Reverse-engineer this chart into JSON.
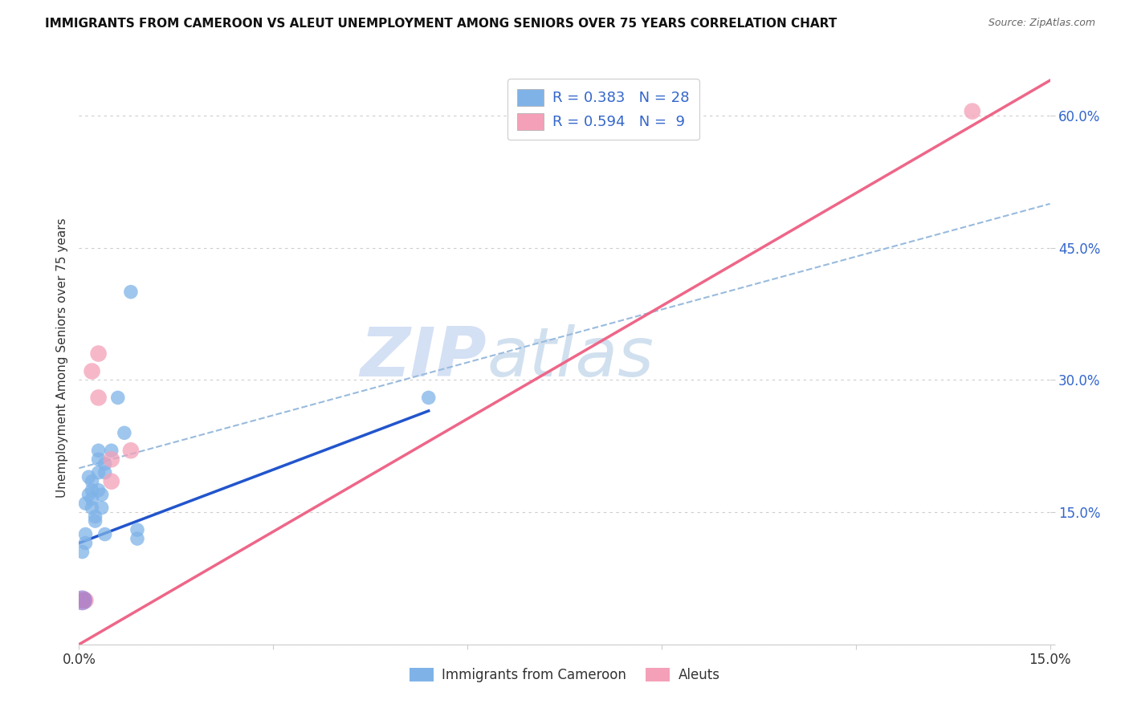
{
  "title": "IMMIGRANTS FROM CAMEROON VS ALEUT UNEMPLOYMENT AMONG SENIORS OVER 75 YEARS CORRELATION CHART",
  "source": "Source: ZipAtlas.com",
  "ylabel": "Unemployment Among Seniors over 75 years",
  "xlim": [
    0.0,
    0.15
  ],
  "ylim": [
    0.0,
    0.65
  ],
  "xticks": [
    0.0,
    0.03,
    0.06,
    0.09,
    0.12,
    0.15
  ],
  "yticks": [
    0.0,
    0.15,
    0.3,
    0.45,
    0.6
  ],
  "background_color": "#ffffff",
  "watermark_zip": "ZIP",
  "watermark_atlas": "atlas",
  "blue_color": "#7fb3e8",
  "pink_color": "#f4a0b8",
  "blue_line_color": "#2255cc",
  "pink_line_color": "#ee6688",
  "dashed_line_color": "#99bbdd",
  "blue_scatter": [
    [
      0.0005,
      0.105
    ],
    [
      0.001,
      0.125
    ],
    [
      0.001,
      0.115
    ],
    [
      0.001,
      0.16
    ],
    [
      0.0015,
      0.17
    ],
    [
      0.0015,
      0.19
    ],
    [
      0.002,
      0.155
    ],
    [
      0.002,
      0.165
    ],
    [
      0.002,
      0.175
    ],
    [
      0.002,
      0.185
    ],
    [
      0.0025,
      0.14
    ],
    [
      0.0025,
      0.145
    ],
    [
      0.003,
      0.175
    ],
    [
      0.003,
      0.195
    ],
    [
      0.003,
      0.21
    ],
    [
      0.003,
      0.22
    ],
    [
      0.0035,
      0.155
    ],
    [
      0.0035,
      0.17
    ],
    [
      0.004,
      0.195
    ],
    [
      0.004,
      0.205
    ],
    [
      0.004,
      0.125
    ],
    [
      0.005,
      0.22
    ],
    [
      0.006,
      0.28
    ],
    [
      0.007,
      0.24
    ],
    [
      0.008,
      0.4
    ],
    [
      0.009,
      0.13
    ],
    [
      0.009,
      0.12
    ],
    [
      0.054,
      0.28
    ]
  ],
  "pink_scatter": [
    [
      0.0005,
      0.05
    ],
    [
      0.001,
      0.05
    ],
    [
      0.002,
      0.31
    ],
    [
      0.003,
      0.33
    ],
    [
      0.003,
      0.28
    ],
    [
      0.005,
      0.21
    ],
    [
      0.005,
      0.185
    ],
    [
      0.008,
      0.22
    ],
    [
      0.138,
      0.605
    ]
  ],
  "blue_trend_x": [
    0.0,
    0.054
  ],
  "blue_trend_y": [
    0.115,
    0.265
  ],
  "pink_trend_x": [
    0.0,
    0.15
  ],
  "pink_trend_y": [
    0.0,
    0.64
  ],
  "dashed_trend_x": [
    0.0,
    0.15
  ],
  "dashed_trend_y": [
    0.2,
    0.5
  ],
  "legend1_label": "R = 0.383   N = 28",
  "legend2_label": "R = 0.594   N =  9",
  "bottom_legend1": "Immigrants from Cameroon",
  "bottom_legend2": "Aleuts"
}
